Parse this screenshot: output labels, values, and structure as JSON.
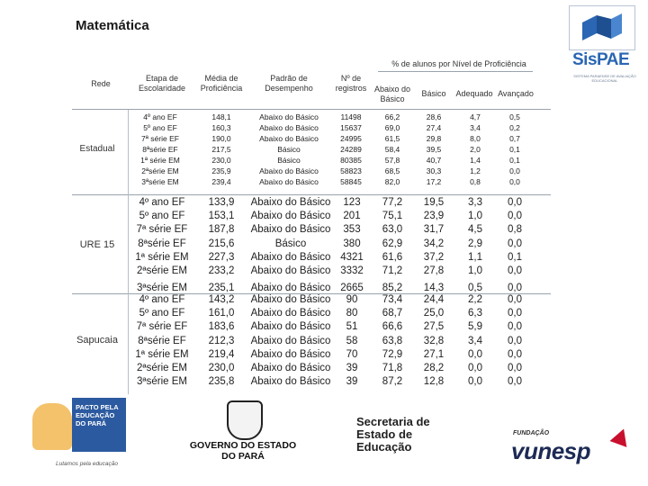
{
  "title": "Matemática",
  "logo": {
    "name": "SisPAE",
    "tagline": "SISTEMA PARAENSE DE AVALIAÇÃO EDUCACIONAL"
  },
  "headers": {
    "rede": "Rede",
    "etapa": "Etapa de Escolaridade",
    "media": "Média de Proficiência",
    "padrao": "Padrão de Desempenho",
    "registros": "Nº de registros",
    "group": "% de alunos por Nível de Proficiência",
    "abaixo_basico": "Abaixo do Básico",
    "basico": "Básico",
    "adequado": "Adequado",
    "avancado": "Avançado"
  },
  "groups": [
    {
      "rede": "Estadual",
      "etapa": [
        "4º ano EF",
        "5º ano EF",
        "7ª série EF",
        "8ªsérie EF",
        "1ª série EM",
        "2ªsérie EM",
        "3ªsérie EM"
      ],
      "media": [
        "148,1",
        "160,3",
        "190,0",
        "217,5",
        "230,0",
        "235,9",
        "239,4"
      ],
      "padrao": [
        "Abaixo do Básico",
        "Abaixo do Básico",
        "Abaixo do Básico",
        "Básico",
        "Básico",
        "Abaixo do Básico",
        "Abaixo do Básico"
      ],
      "registros": [
        "11498",
        "15637",
        "24995",
        "24289",
        "80385",
        "58823",
        "58845"
      ],
      "abaixo": [
        "66,2",
        "69,0",
        "61,5",
        "58,4",
        "57,8",
        "68,5",
        "82,0"
      ],
      "basico": [
        "28,6",
        "27,4",
        "29,8",
        "39,5",
        "40,7",
        "30,3",
        "17,2"
      ],
      "adequado": [
        "4,7",
        "3,4",
        "8,0",
        "2,0",
        "1,4",
        "1,2",
        "0,8"
      ],
      "avancado": [
        "0,5",
        "0,2",
        "0,7",
        "0,1",
        "0,1",
        "0,0",
        "0,0"
      ]
    },
    {
      "rede": "URE 15",
      "etapa": [
        "4º ano EF",
        "5º ano EF",
        "7ª série EF",
        "8ªsérie EF",
        "1ª série EM",
        "2ªsérie EM",
        "3ªsérie EM"
      ],
      "media": [
        "133,9",
        "153,1",
        "187,8",
        "215,6",
        "227,3",
        "233,2",
        "235,1"
      ],
      "padrao": [
        "Abaixo do Básico",
        "Abaixo do Básico",
        "Abaixo do Básico",
        "Básico",
        "Abaixo do Básico",
        "Abaixo do Básico",
        "Abaixo do Básico"
      ],
      "registros": [
        "123",
        "201",
        "353",
        "380",
        "4321",
        "3332",
        "2665"
      ],
      "abaixo": [
        "77,2",
        "75,1",
        "63,0",
        "62,9",
        "61,6",
        "71,2",
        "85,2"
      ],
      "basico": [
        "19,5",
        "23,9",
        "31,7",
        "34,2",
        "37,2",
        "27,8",
        "14,3"
      ],
      "adequado": [
        "3,3",
        "1,0",
        "4,5",
        "2,9",
        "1,1",
        "1,0",
        "0,5"
      ],
      "avancado": [
        "0,0",
        "0,0",
        "0,8",
        "0,0",
        "0,1",
        "0,0",
        "0,0"
      ]
    },
    {
      "rede": "Sapucaia",
      "etapa": [
        "4º ano EF",
        "5º ano EF",
        "7ª série EF",
        "8ªsérie EF",
        "1ª série EM",
        "2ªsérie EM",
        "3ªsérie EM"
      ],
      "media": [
        "143,2",
        "161,0",
        "183,6",
        "212,3",
        "219,4",
        "230,0",
        "235,8"
      ],
      "padrao": [
        "Abaixo do Básico",
        "Abaixo do Básico",
        "Abaixo do Básico",
        "Abaixo do Básico",
        "Abaixo do Básico",
        "Abaixo do Básico",
        "Abaixo do Básico"
      ],
      "registros": [
        "90",
        "80",
        "51",
        "58",
        "70",
        "39",
        "39"
      ],
      "abaixo": [
        "73,4",
        "68,7",
        "66,6",
        "63,8",
        "72,9",
        "71,8",
        "87,2"
      ],
      "basico": [
        "24,4",
        "25,0",
        "27,5",
        "32,8",
        "27,1",
        "28,2",
        "12,8"
      ],
      "adequado": [
        "2,2",
        "6,3",
        "5,9",
        "3,4",
        "0,0",
        "0,0",
        "0,0"
      ],
      "avancado": [
        "0,0",
        "0,0",
        "0,0",
        "0,0",
        "0,0",
        "0,0",
        "0,0"
      ]
    }
  ],
  "footer": {
    "pacto": "PACTO PELA EDUCAÇÃO DO PARÁ",
    "pacto_slogan": "Lutamos pela educação",
    "governo": "GOVERNO DO ESTADO DO PARÁ",
    "secretaria": "Secretaria de Estado de Educação",
    "fundacao": "FUNDAÇÃO",
    "vunesp": "vunesp"
  }
}
